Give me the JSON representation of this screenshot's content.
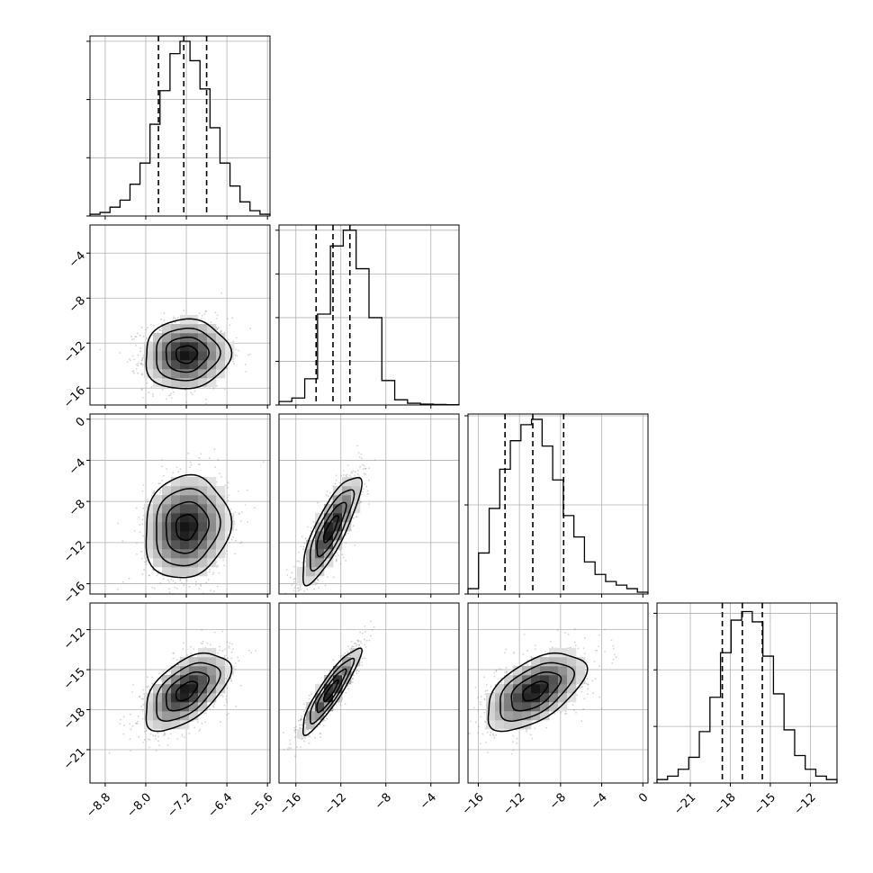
{
  "chart_data": {
    "type": "corner",
    "title": "",
    "params": [
      {
        "range": [
          -9.1,
          -5.55
        ],
        "ticks": [
          "−8.8",
          "−8.0",
          "−7.2",
          "−6.4",
          "−5.6"
        ],
        "tick_values": [
          -8.8,
          -8.0,
          -7.2,
          -6.4,
          -5.6
        ],
        "quantiles": [
          -7.75,
          -7.25,
          -6.8
        ],
        "mean": -7.25,
        "sd": 0.42
      },
      {
        "range": [
          -17.5,
          -1.5
        ],
        "ticks": [
          "−16",
          "−12",
          "−8",
          "−4"
        ],
        "tick_values": [
          -16,
          -12,
          -8,
          -4
        ],
        "quantiles": [
          -14.2,
          -12.7,
          -11.2
        ],
        "mean": -12.7,
        "sd": 1.55
      },
      {
        "range": [
          -17.0,
          0.5
        ],
        "ticks": [
          "−16",
          "−12",
          "−8",
          "−4",
          "0"
        ],
        "tick_values": [
          -16,
          -12,
          -8,
          -4,
          0
        ],
        "quantiles": [
          -13.4,
          -10.7,
          -7.7
        ],
        "mean": -10.7,
        "sd": 2.5
      },
      {
        "range": [
          -23.5,
          -10.0
        ],
        "ticks": [
          "−21",
          "−18",
          "−15",
          "−12"
        ],
        "tick_values": [
          -21,
          -18,
          -15,
          -12
        ],
        "quantiles": [
          -18.6,
          -17.1,
          -15.6
        ],
        "mean": -17.1,
        "sd": 1.45
      }
    ],
    "histograms": [
      {
        "param": 0,
        "counts": [
          1,
          2,
          5,
          9,
          18,
          30,
          52,
          71,
          92,
          99,
          88,
          72,
          50,
          30,
          17,
          8,
          3,
          1
        ],
        "ylim": [
          0,
          102
        ],
        "ytick_values": [
          0,
          33,
          66,
          99
        ]
      },
      {
        "param": 1,
        "counts": [
          2,
          4,
          15,
          52,
          91,
          100,
          78,
          50,
          14,
          3,
          1,
          0.5,
          0.3,
          0.2
        ],
        "ylim": [
          0,
          103
        ],
        "ytick_values": [
          0,
          25,
          50,
          75,
          100
        ]
      },
      {
        "param": 2,
        "counts": [
          3,
          23,
          48,
          70,
          86,
          95,
          98,
          83,
          64,
          44,
          32,
          18,
          11,
          7,
          5,
          3,
          1
        ],
        "ylim": [
          0,
          101
        ],
        "ytick_values": [
          0,
          50,
          100
        ]
      },
      {
        "param": 3,
        "counts": [
          2,
          4,
          8,
          15,
          30,
          50,
          76,
          95,
          100,
          94,
          74,
          52,
          31,
          16,
          8,
          4,
          2
        ],
        "ylim": [
          0,
          105
        ],
        "ytick_values": [
          0,
          33,
          66,
          99
        ]
      }
    ],
    "pairs": [
      {
        "x": 0,
        "y": 1,
        "center": [
          -7.2,
          -13.0
        ],
        "sx": 0.42,
        "sy": 1.55,
        "rho": 0.05
      },
      {
        "x": 0,
        "y": 2,
        "center": [
          -7.2,
          -10.5
        ],
        "sx": 0.42,
        "sy": 2.5,
        "rho": 0.1
      },
      {
        "x": 1,
        "y": 2,
        "center": [
          -12.9,
          -10.7
        ],
        "sx": 1.3,
        "sy": 2.6,
        "rho": 0.82
      },
      {
        "x": 0,
        "y": 3,
        "center": [
          -7.2,
          -16.6
        ],
        "sx": 0.42,
        "sy": 1.45,
        "rho": 0.55
      },
      {
        "x": 1,
        "y": 3,
        "center": [
          -12.9,
          -16.6
        ],
        "sx": 1.3,
        "sy": 1.6,
        "rho": 0.9
      },
      {
        "x": 2,
        "y": 3,
        "center": [
          -10.5,
          -16.6
        ],
        "sx": 2.4,
        "sy": 1.45,
        "rho": 0.55
      }
    ],
    "grid": true,
    "legend": "none"
  },
  "style": {
    "line": "#000000",
    "grid": "#b0b0b0",
    "scatter": "#7f7f7f",
    "density_dark": "#000000",
    "density_light": "#ffffff"
  }
}
